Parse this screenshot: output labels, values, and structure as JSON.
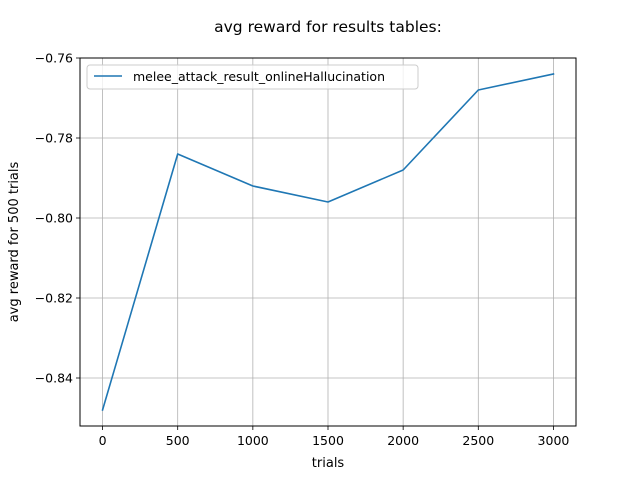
{
  "chart_data": {
    "type": "line",
    "title": "avg reward for results tables:",
    "xlabel": "trials",
    "ylabel": "avg reward for 500 trials",
    "x": [
      0,
      500,
      1000,
      1500,
      2000,
      2500,
      3000
    ],
    "series": [
      {
        "name": "melee_attack_result_onlineHallucination",
        "values": [
          -0.848,
          -0.784,
          -0.792,
          -0.796,
          -0.788,
          -0.768,
          -0.764
        ],
        "color": "#1f77b4"
      }
    ],
    "xlim": [
      -150,
      3150
    ],
    "ylim": [
      -0.852,
      -0.76
    ],
    "xticks": [
      0,
      500,
      1000,
      1500,
      2000,
      2500,
      3000
    ],
    "xtick_labels": [
      "0",
      "500",
      "1000",
      "1500",
      "2000",
      "2500",
      "3000"
    ],
    "yticks": [
      -0.84,
      -0.82,
      -0.8,
      -0.78,
      -0.76
    ],
    "ytick_labels": [
      "−0.84",
      "−0.82",
      "−0.80",
      "−0.78",
      "−0.76"
    ],
    "grid": true,
    "legend_position": "top-left"
  }
}
